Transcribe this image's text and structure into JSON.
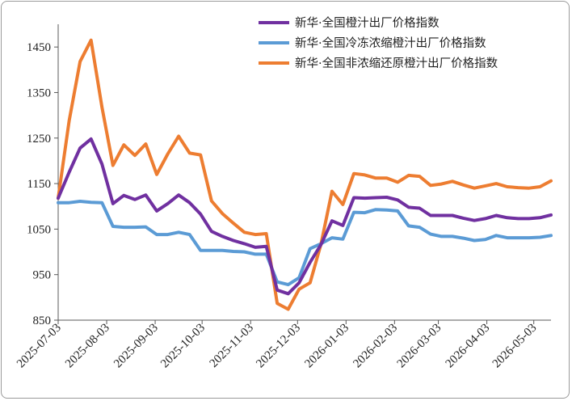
{
  "chart_data": {
    "type": "line",
    "title": "",
    "xlabel": "",
    "ylabel": "",
    "ylim": [
      850,
      1500
    ],
    "yticks": [
      "850",
      "950",
      "1050",
      "1150",
      "1250",
      "1350",
      "1450"
    ],
    "grid": false,
    "legend_position": "top-right",
    "x_tick_labels": [
      "2025-07-03",
      "2025-08-03",
      "2025-09-03",
      "2025-10-03",
      "2025-11-03",
      "2025-12-03",
      "2026-01-03",
      "2026-02-03",
      "2026-03-03",
      "2026-04-03",
      "2026-05-03"
    ],
    "x_start": "2025-07-03",
    "x_end": "2026-05-14",
    "series": [
      {
        "name": "新华·全国橙汁出厂价格指数",
        "color": "#7030a0",
        "points": [
          [
            "2025-07-03",
            1118
          ],
          [
            "2025-07-10",
            1175
          ],
          [
            "2025-07-17",
            1228
          ],
          [
            "2025-07-24",
            1248
          ],
          [
            "2025-07-31",
            1193
          ],
          [
            "2025-08-07",
            1106
          ],
          [
            "2025-08-14",
            1124
          ],
          [
            "2025-08-21",
            1115
          ],
          [
            "2025-08-28",
            1125
          ],
          [
            "2025-09-04",
            1090
          ],
          [
            "2025-09-11",
            1106
          ],
          [
            "2025-09-18",
            1125
          ],
          [
            "2025-09-25",
            1108
          ],
          [
            "2025-10-02",
            1083
          ],
          [
            "2025-10-09",
            1045
          ],
          [
            "2025-10-16",
            1034
          ],
          [
            "2025-10-23",
            1025
          ],
          [
            "2025-10-30",
            1018
          ],
          [
            "2025-11-06",
            1010
          ],
          [
            "2025-11-13",
            1012
          ],
          [
            "2025-11-20",
            916
          ],
          [
            "2025-11-27",
            908
          ],
          [
            "2025-12-04",
            932
          ],
          [
            "2025-12-11",
            977
          ],
          [
            "2025-12-18",
            1016
          ],
          [
            "2025-12-25",
            1068
          ],
          [
            "2026-01-01",
            1058
          ],
          [
            "2026-01-08",
            1119
          ],
          [
            "2026-01-15",
            1118
          ],
          [
            "2026-01-22",
            1119
          ],
          [
            "2026-01-29",
            1120
          ],
          [
            "2026-02-05",
            1114
          ],
          [
            "2026-02-12",
            1098
          ],
          [
            "2026-02-19",
            1096
          ],
          [
            "2026-02-26",
            1080
          ],
          [
            "2026-03-05",
            1080
          ],
          [
            "2026-03-12",
            1080
          ],
          [
            "2026-03-19",
            1074
          ],
          [
            "2026-03-26",
            1069
          ],
          [
            "2026-04-02",
            1073
          ],
          [
            "2026-04-09",
            1080
          ],
          [
            "2026-04-16",
            1075
          ],
          [
            "2026-04-23",
            1073
          ],
          [
            "2026-04-30",
            1073
          ],
          [
            "2026-05-07",
            1075
          ],
          [
            "2026-05-14",
            1081
          ]
        ]
      },
      {
        "name": "新华·全国冷冻浓缩橙汁出厂价格指数",
        "color": "#5b9bd5",
        "points": [
          [
            "2025-07-03",
            1108
          ],
          [
            "2025-07-10",
            1108
          ],
          [
            "2025-07-17",
            1111
          ],
          [
            "2025-07-24",
            1109
          ],
          [
            "2025-07-31",
            1108
          ],
          [
            "2025-08-07",
            1056
          ],
          [
            "2025-08-14",
            1054
          ],
          [
            "2025-08-21",
            1054
          ],
          [
            "2025-08-28",
            1055
          ],
          [
            "2025-09-04",
            1038
          ],
          [
            "2025-09-11",
            1038
          ],
          [
            "2025-09-18",
            1043
          ],
          [
            "2025-09-25",
            1038
          ],
          [
            "2025-10-02",
            1003
          ],
          [
            "2025-10-09",
            1003
          ],
          [
            "2025-10-16",
            1003
          ],
          [
            "2025-10-23",
            1001
          ],
          [
            "2025-10-30",
            1000
          ],
          [
            "2025-11-06",
            995
          ],
          [
            "2025-11-13",
            995
          ],
          [
            "2025-11-20",
            934
          ],
          [
            "2025-11-27",
            928
          ],
          [
            "2025-12-04",
            943
          ],
          [
            "2025-12-11",
            1007
          ],
          [
            "2025-12-18",
            1018
          ],
          [
            "2025-12-25",
            1031
          ],
          [
            "2026-01-01",
            1028
          ],
          [
            "2026-01-08",
            1087
          ],
          [
            "2026-01-15",
            1086
          ],
          [
            "2026-01-22",
            1093
          ],
          [
            "2026-01-29",
            1092
          ],
          [
            "2026-02-05",
            1090
          ],
          [
            "2026-02-12",
            1057
          ],
          [
            "2026-02-19",
            1054
          ],
          [
            "2026-02-26",
            1039
          ],
          [
            "2026-03-05",
            1034
          ],
          [
            "2026-03-12",
            1034
          ],
          [
            "2026-03-19",
            1030
          ],
          [
            "2026-03-26",
            1025
          ],
          [
            "2026-04-02",
            1027
          ],
          [
            "2026-04-09",
            1036
          ],
          [
            "2026-04-16",
            1031
          ],
          [
            "2026-04-23",
            1031
          ],
          [
            "2026-04-30",
            1031
          ],
          [
            "2026-05-07",
            1032
          ],
          [
            "2026-05-14",
            1036
          ]
        ]
      },
      {
        "name": "新华·全国非浓缩还原橙汁出厂价格指数",
        "color": "#ed7d31",
        "points": [
          [
            "2025-07-03",
            1118
          ],
          [
            "2025-07-10",
            1288
          ],
          [
            "2025-07-17",
            1418
          ],
          [
            "2025-07-24",
            1465
          ],
          [
            "2025-07-31",
            1318
          ],
          [
            "2025-08-07",
            1190
          ],
          [
            "2025-08-14",
            1235
          ],
          [
            "2025-08-21",
            1212
          ],
          [
            "2025-08-28",
            1237
          ],
          [
            "2025-09-04",
            1170
          ],
          [
            "2025-09-11",
            1215
          ],
          [
            "2025-09-18",
            1254
          ],
          [
            "2025-09-25",
            1217
          ],
          [
            "2025-10-02",
            1213
          ],
          [
            "2025-10-09",
            1112
          ],
          [
            "2025-10-16",
            1084
          ],
          [
            "2025-10-23",
            1063
          ],
          [
            "2025-10-30",
            1043
          ],
          [
            "2025-11-06",
            1038
          ],
          [
            "2025-11-13",
            1040
          ],
          [
            "2025-11-20",
            887
          ],
          [
            "2025-11-27",
            874
          ],
          [
            "2025-12-04",
            918
          ],
          [
            "2025-12-11",
            932
          ],
          [
            "2025-12-18",
            1017
          ],
          [
            "2025-12-25",
            1133
          ],
          [
            "2026-01-01",
            1104
          ],
          [
            "2026-01-08",
            1172
          ],
          [
            "2026-01-15",
            1169
          ],
          [
            "2026-01-22",
            1162
          ],
          [
            "2026-01-29",
            1162
          ],
          [
            "2026-02-05",
            1153
          ],
          [
            "2026-02-12",
            1168
          ],
          [
            "2026-02-19",
            1166
          ],
          [
            "2026-02-26",
            1146
          ],
          [
            "2026-03-05",
            1149
          ],
          [
            "2026-03-12",
            1155
          ],
          [
            "2026-03-19",
            1147
          ],
          [
            "2026-03-26",
            1140
          ],
          [
            "2026-04-02",
            1145
          ],
          [
            "2026-04-09",
            1150
          ],
          [
            "2026-04-16",
            1143
          ],
          [
            "2026-04-23",
            1141
          ],
          [
            "2026-04-30",
            1140
          ],
          [
            "2026-05-07",
            1143
          ],
          [
            "2026-05-14",
            1156
          ]
        ]
      }
    ]
  }
}
